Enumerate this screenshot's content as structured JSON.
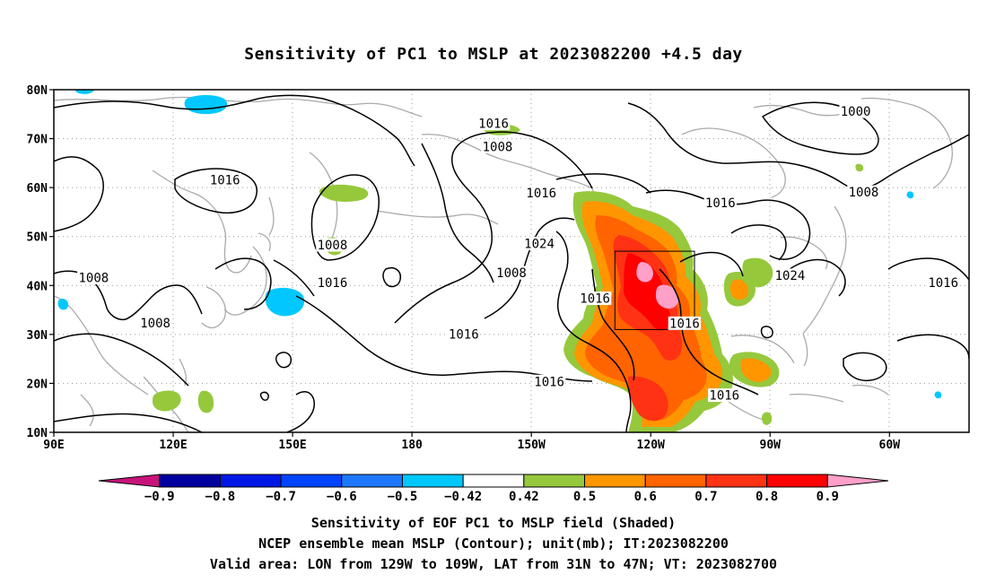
{
  "title": "Sensitivity of PC1 to MSLP at 2023082200 +4.5 day",
  "map": {
    "lat_labels": [
      "80N",
      "70N",
      "60N",
      "50N",
      "40N",
      "30N",
      "20N",
      "10N"
    ],
    "lon_labels": [
      "90E",
      "120E",
      "150E",
      "180",
      "150W",
      "120W",
      "90W",
      "60W"
    ],
    "lat_range": [
      10,
      80
    ],
    "lon_range": [
      90,
      320
    ],
    "valid_box": {
      "lon": [
        231,
        251
      ],
      "lat": [
        31,
        47
      ]
    },
    "contour_labels": [
      {
        "text": "1016",
        "lon": 200.5,
        "lat": 73.0
      },
      {
        "text": "1008",
        "lon": 201.5,
        "lat": 68.3
      },
      {
        "text": "1016",
        "lon": 133.0,
        "lat": 61.5
      },
      {
        "text": "1008",
        "lon": 160.0,
        "lat": 48.2
      },
      {
        "text": "1016",
        "lon": 160.0,
        "lat": 40.5
      },
      {
        "text": "1008",
        "lon": 100.0,
        "lat": 41.5
      },
      {
        "text": "1008",
        "lon": 115.5,
        "lat": 32.3
      },
      {
        "text": "1008",
        "lon": 205.0,
        "lat": 42.5
      },
      {
        "text": "1016",
        "lon": 212.5,
        "lat": 58.8
      },
      {
        "text": "1024",
        "lon": 212.0,
        "lat": 48.5
      },
      {
        "text": "1016",
        "lon": 226.0,
        "lat": 37.3
      },
      {
        "text": "1016",
        "lon": 193.0,
        "lat": 30.0
      },
      {
        "text": "1016",
        "lon": 214.5,
        "lat": 20.3
      },
      {
        "text": "1016",
        "lon": 248.5,
        "lat": 32.2
      },
      {
        "text": "1016",
        "lon": 258.5,
        "lat": 17.5
      },
      {
        "text": "1016",
        "lon": 257.5,
        "lat": 56.8
      },
      {
        "text": "1000",
        "lon": 291.5,
        "lat": 75.5
      },
      {
        "text": "1008",
        "lon": 293.5,
        "lat": 59.0
      },
      {
        "text": "1024",
        "lon": 275.0,
        "lat": 42.0
      },
      {
        "text": "1016",
        "lon": 313.5,
        "lat": 40.5
      }
    ]
  },
  "colorbar": {
    "labels": [
      "−0.9",
      "−0.8",
      "−0.7",
      "−0.6",
      "−0.5",
      "−0.42",
      "0.42",
      "0.5",
      "0.6",
      "0.7",
      "0.8",
      "0.9"
    ],
    "colors": [
      "#c8147a",
      "#0000a0",
      "#0018e6",
      "#0044ff",
      "#1e78ff",
      "#00c8ff",
      "#ffffff",
      "#96c83c",
      "#ff9600",
      "#ff6400",
      "#ff3214",
      "#ff0000",
      "#ffa0c8"
    ]
  },
  "captions": [
    "Sensitivity of EOF PC1 to MSLP field (Shaded)",
    "NCEP ensemble mean MSLP (Contour); unit(mb); IT:2023082200",
    "Valid area: LON from 129W to 109W, LAT from 31N to 47N; VT: 2023082700"
  ]
}
